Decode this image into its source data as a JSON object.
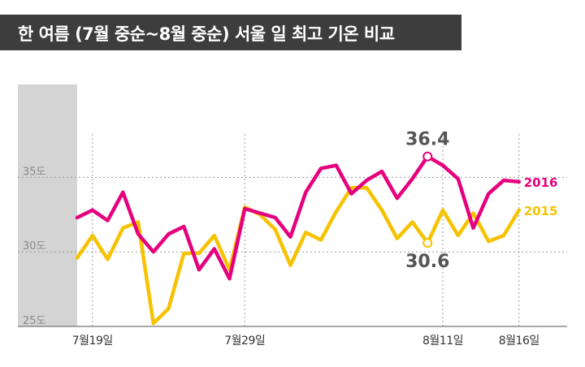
{
  "chart_data": {
    "type": "line",
    "title": "한 여름 (7월 중순~8월 중순) 서울 일 최고 기온 비교",
    "xlabel": "",
    "ylabel": "",
    "ylim": [
      25,
      36
    ],
    "y_ticks": [
      "35도",
      "30도",
      "25도"
    ],
    "x_tick_labels": [
      "7월19일",
      "7월29일",
      "8월11일",
      "8월16일"
    ],
    "x_tick_index": [
      1,
      11,
      24,
      29
    ],
    "grid": true,
    "x": [
      18,
      19,
      20,
      21,
      22,
      23,
      24,
      25,
      26,
      27,
      28,
      29,
      30,
      31,
      32,
      33,
      34,
      35,
      36,
      37,
      38,
      39,
      40,
      41,
      42,
      43,
      44,
      45,
      46,
      47
    ],
    "series": [
      {
        "name": "2016",
        "color": "#e5007e",
        "values": [
          32.3,
          32.8,
          32.1,
          34.0,
          31.2,
          30.0,
          31.2,
          31.7,
          28.8,
          30.2,
          28.2,
          32.9,
          32.6,
          32.3,
          31.0,
          34.0,
          35.6,
          35.8,
          33.9,
          34.8,
          35.4,
          33.6,
          34.9,
          36.4,
          35.8,
          34.9,
          31.6,
          33.9,
          34.8,
          34.7
        ]
      },
      {
        "name": "2015",
        "color": "#f7c200",
        "values": [
          29.6,
          31.1,
          29.5,
          31.6,
          32.0,
          25.2,
          26.2,
          29.9,
          29.9,
          31.1,
          28.8,
          33.0,
          32.5,
          31.5,
          29.1,
          31.3,
          30.8,
          32.7,
          34.3,
          34.3,
          32.8,
          30.9,
          32.0,
          30.6,
          32.8,
          31.1,
          32.6,
          30.7,
          31.1,
          32.8
        ]
      }
    ],
    "annotations": [
      {
        "text": "36.4",
        "series": "2016",
        "index": 23
      },
      {
        "text": "30.6",
        "series": "2015",
        "index": 23
      }
    ]
  }
}
